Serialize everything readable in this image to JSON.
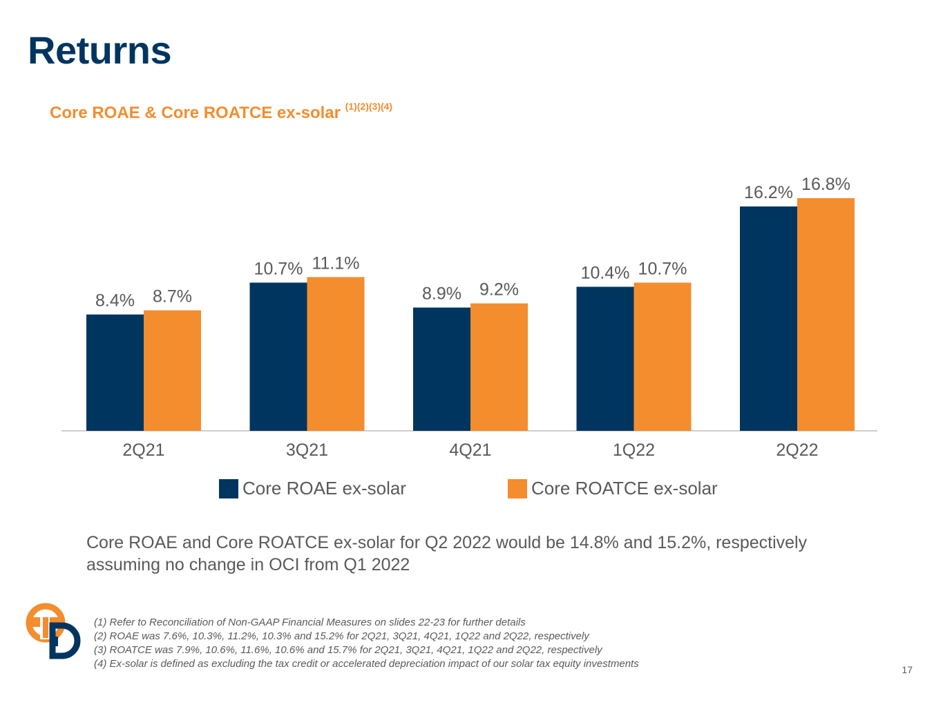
{
  "title": "Returns",
  "subtitle": {
    "text": "Core ROAE & Core ROATCE ex-solar",
    "refs": "(1)(2)(3)(4)"
  },
  "colors": {
    "navy": "#003560",
    "orange": "#f38d2e",
    "text": "#595959"
  },
  "chart_data": {
    "type": "bar",
    "categories": [
      "2Q21",
      "3Q21",
      "4Q21",
      "1Q22",
      "2Q22"
    ],
    "series": [
      {
        "name": "Core ROAE ex-solar",
        "values": [
          8.4,
          10.7,
          8.9,
          10.4,
          16.2
        ],
        "labels": [
          "8.4%",
          "10.7%",
          "8.9%",
          "10.4%",
          "16.2%"
        ],
        "color": "#003560"
      },
      {
        "name": "Core ROATCE ex-solar",
        "values": [
          8.7,
          11.1,
          9.2,
          10.7,
          16.8
        ],
        "labels": [
          "8.7%",
          "11.1%",
          "9.2%",
          "10.7%",
          "16.8%"
        ],
        "color": "#f38d2e"
      }
    ],
    "ylim": [
      0,
      18
    ],
    "grid": false,
    "legend_position": "bottom"
  },
  "note": "Core ROAE and Core ROATCE ex-solar for Q2 2022 would be 14.8% and 15.2%, respectively assuming no change in OCI from Q1 2022",
  "footnotes": [
    "(1) Refer to Reconciliation of Non-GAAP Financial Measures on slides 22-23 for further details",
    "(2) ROAE was 7.6%, 10.3%, 11.2%, 10.3% and 15.2% for 2Q21, 3Q21, 4Q21, 1Q22 and 2Q22, respectively",
    "(3) ROATCE was 7.9%, 10.6%, 11.6%, 10.6% and 15.7% for 2Q21, 3Q21, 4Q21, 1Q22 and 2Q22, respectively",
    "(4) Ex-solar is defined as excluding the tax credit or accelerated depreciation impact of our solar tax equity investments"
  ],
  "page_number": "17"
}
